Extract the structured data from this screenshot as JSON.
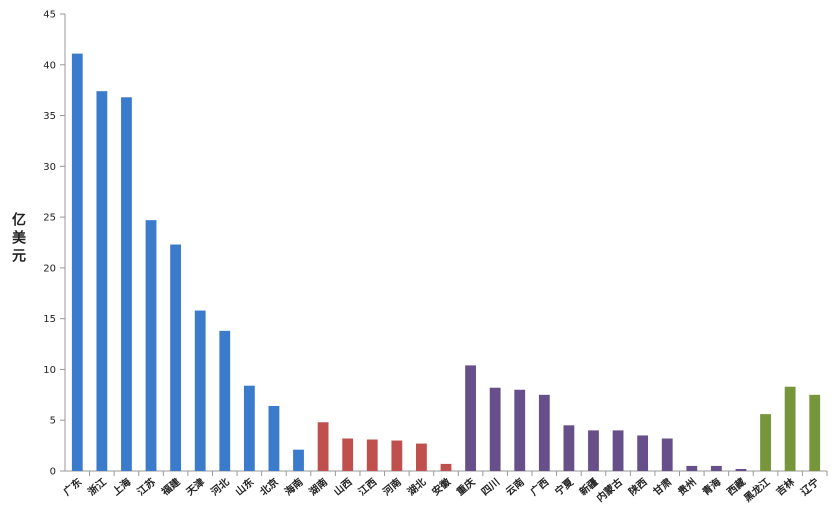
{
  "chart_data": {
    "type": "bar",
    "y_label": "亿美元",
    "categories": [
      "广东",
      "浙江",
      "上海",
      "江苏",
      "福建",
      "天津",
      "河北",
      "山东",
      "北京",
      "海南",
      "湖南",
      "山西",
      "江西",
      "河南",
      "湖北",
      "安徽",
      "重庆",
      "四川",
      "云南",
      "广西",
      "宁夏",
      "新疆",
      "内蒙古",
      "陕西",
      "甘肃",
      "贵州",
      "青海",
      "西藏",
      "黑龙江",
      "吉林",
      "辽宁"
    ],
    "values": [
      41.1,
      37.4,
      36.8,
      24.7,
      22.3,
      15.8,
      13.8,
      8.4,
      6.4,
      2.1,
      4.8,
      3.2,
      3.1,
      3.0,
      2.7,
      0.7,
      10.4,
      8.2,
      8.0,
      7.5,
      4.5,
      4.0,
      4.0,
      3.5,
      3.2,
      0.5,
      0.5,
      0.2,
      5.6,
      8.3,
      7.5
    ],
    "colors": [
      "#3b7bcc",
      "#3b7bcc",
      "#3b7bcc",
      "#3b7bcc",
      "#3b7bcc",
      "#3b7bcc",
      "#3b7bcc",
      "#3b7bcc",
      "#3b7bcc",
      "#3b7bcc",
      "#c0504d",
      "#c0504d",
      "#c0504d",
      "#c0504d",
      "#c0504d",
      "#c0504d",
      "#67508a",
      "#67508a",
      "#67508a",
      "#67508a",
      "#67508a",
      "#67508a",
      "#67508a",
      "#67508a",
      "#67508a",
      "#67508a",
      "#67508a",
      "#67508a",
      "#77963c",
      "#77963c",
      "#77963c"
    ],
    "ylim": [
      0,
      45
    ],
    "yticks": [
      0,
      5,
      10,
      15,
      20,
      25,
      30,
      35,
      40,
      45
    ],
    "grid": false
  }
}
